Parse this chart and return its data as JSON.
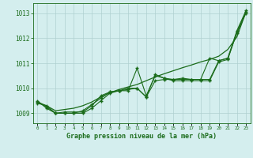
{
  "title": "Graphe pression niveau de la mer (hPa)",
  "xlabel_hours": [
    0,
    1,
    2,
    3,
    4,
    5,
    6,
    7,
    8,
    9,
    10,
    11,
    12,
    13,
    14,
    15,
    16,
    17,
    18,
    19,
    20,
    21,
    22,
    23
  ],
  "series1": [
    1009.4,
    1009.3,
    1009.0,
    1009.0,
    1009.0,
    1009.0,
    1009.2,
    1009.5,
    1009.8,
    1009.9,
    1009.9,
    1010.8,
    1009.7,
    1010.5,
    1010.4,
    1010.35,
    1010.4,
    1010.35,
    1010.35,
    1010.35,
    1011.1,
    1011.2,
    1012.2,
    1013.0
  ],
  "series2": [
    1009.45,
    1009.25,
    1009.0,
    1009.05,
    1009.05,
    1009.05,
    1009.3,
    1009.7,
    1009.85,
    1009.9,
    1009.95,
    1010.0,
    1009.65,
    1010.3,
    1010.35,
    1010.35,
    1010.35,
    1010.35,
    1010.35,
    1011.2,
    1011.1,
    1011.2,
    1012.3,
    1013.1
  ],
  "series3": [
    1009.5,
    1009.2,
    1009.0,
    1009.0,
    1009.0,
    1009.1,
    1009.35,
    1009.6,
    1009.85,
    1009.9,
    1010.0,
    1010.0,
    1009.65,
    1010.55,
    1010.4,
    1010.3,
    1010.3,
    1010.3,
    1010.3,
    1010.3,
    1011.05,
    1011.15,
    1012.25,
    1013.05
  ],
  "smooth_line": [
    1009.45,
    1009.3,
    1009.1,
    1009.15,
    1009.2,
    1009.3,
    1009.45,
    1009.65,
    1009.82,
    1009.95,
    1010.05,
    1010.15,
    1010.3,
    1010.45,
    1010.58,
    1010.7,
    1010.82,
    1010.93,
    1011.05,
    1011.15,
    1011.28,
    1011.55,
    1012.05,
    1013.05
  ],
  "line_color": "#1a6b1a",
  "bg_color": "#d4eeee",
  "grid_color": "#b0d0d0",
  "ylim_min": 1008.6,
  "ylim_max": 1013.4,
  "yticks": [
    1009,
    1010,
    1011,
    1012,
    1013
  ]
}
